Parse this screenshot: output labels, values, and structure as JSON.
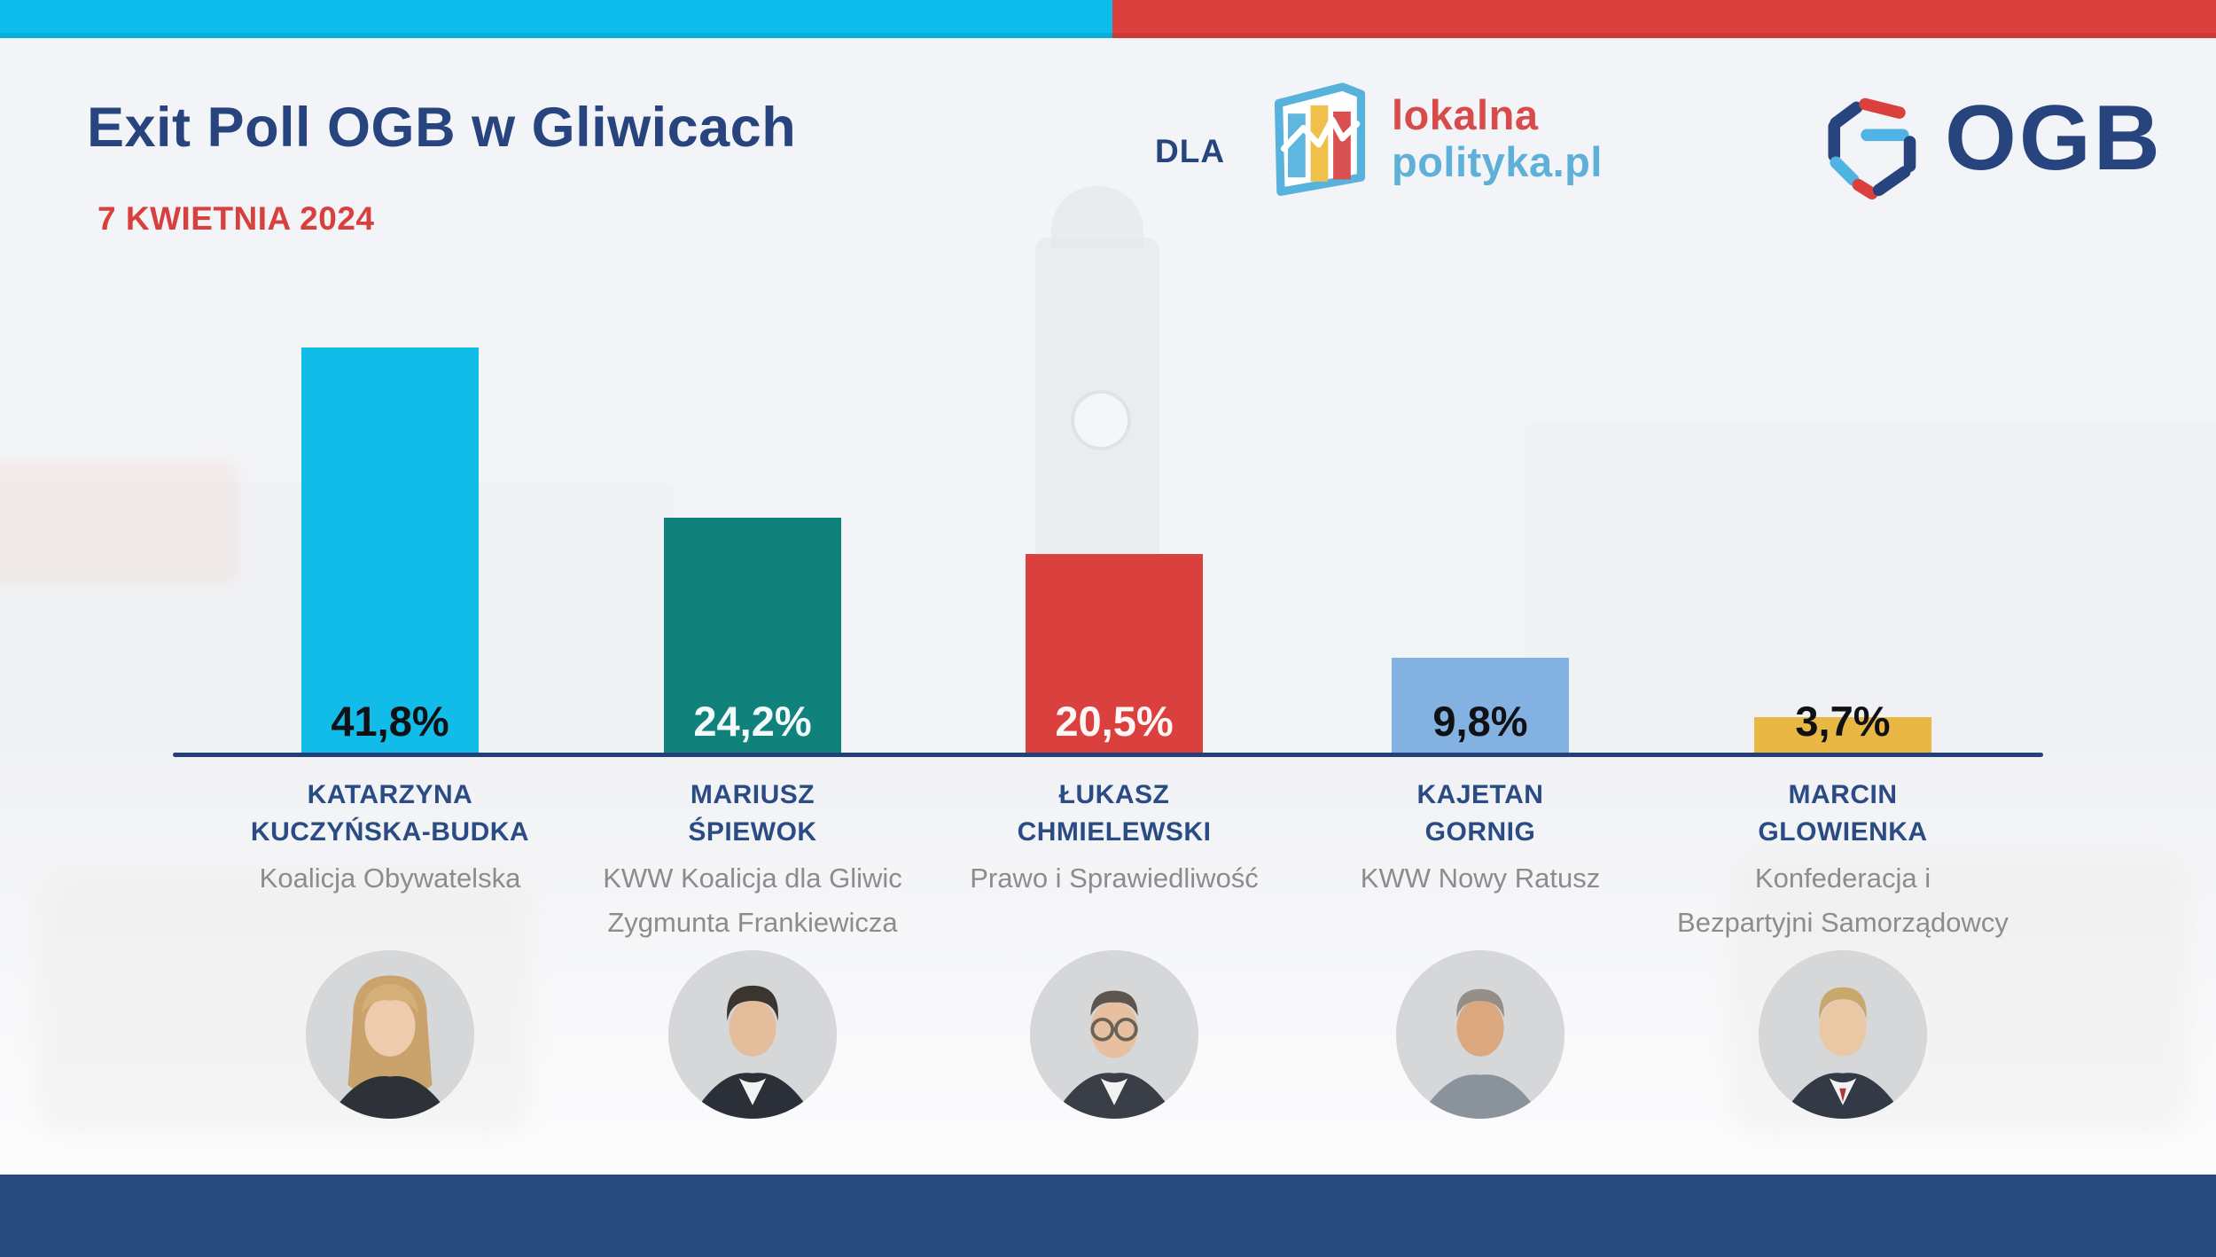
{
  "header": {
    "title": "Exit Poll OGB w Gliwicach",
    "date": "7 KWIETNIA 2024",
    "dla_label": "DLA",
    "partner_logo": {
      "line1": "lokalna",
      "line2": "polityka.pl"
    },
    "ogb_logo_text": "OGB"
  },
  "colors": {
    "top_bar_left_cyan": "#0DBDEB",
    "top_bar_right_red": "#D9403E",
    "title_navy": "#27447E",
    "date_red": "#D8403E",
    "baseline_navy": "#24407A",
    "bottom_bar_navy": "#27497B",
    "candidate_name_navy": "#2B4B84",
    "party_gray": "#8C8C8C",
    "lokalna_red": "#D84B4B",
    "lokalna_blue": "#5FB0D8"
  },
  "chart_data": {
    "type": "bar",
    "title": "Exit Poll OGB w Gliwicach",
    "subtitle": "7 KWIETNIA 2024",
    "categories": [
      "Katarzyna Kuczyńska-Budka",
      "Mariusz Śpiewok",
      "Łukasz Chmielewski",
      "Kajetan Gornig",
      "Marcin Glowienka"
    ],
    "values": [
      41.8,
      24.2,
      20.5,
      9.8,
      3.7
    ],
    "value_labels": [
      "41,8%",
      "24,2%",
      "20,5%",
      "9,8%",
      "3,7%"
    ],
    "bar_colors": [
      "#12BCE9",
      "#10827B",
      "#D9403E",
      "#82B1E2",
      "#E9B844"
    ],
    "xlabel": "",
    "ylabel": "",
    "ylim": [
      0,
      45
    ],
    "grid": false,
    "legend": false
  },
  "candidates": [
    {
      "name_line1": "KATARZYNA",
      "name_line2": "KUCZYŃSKA-BUDKA",
      "party_line1": "Koalicja Obywatelska",
      "party_line2": "",
      "value": 41.8,
      "pct_label": "41,8%",
      "bar_color": "#12BCE9",
      "pct_text_color": "#101114"
    },
    {
      "name_line1": "MARIUSZ",
      "name_line2": "ŚPIEWOK",
      "party_line1": "KWW Koalicja dla Gliwic",
      "party_line2": "Zygmunta Frankiewicza",
      "value": 24.2,
      "pct_label": "24,2%",
      "bar_color": "#10827B",
      "pct_text_color": "#F2FAFB"
    },
    {
      "name_line1": "ŁUKASZ",
      "name_line2": "CHMIELEWSKI",
      "party_line1": "Prawo i Sprawiedliwość",
      "party_line2": "",
      "value": 20.5,
      "pct_label": "20,5%",
      "bar_color": "#D9403E",
      "pct_text_color": "#FDF6F4"
    },
    {
      "name_line1": "KAJETAN",
      "name_line2": "GORNIG",
      "party_line1": "KWW Nowy Ratusz",
      "party_line2": "",
      "value": 9.8,
      "pct_label": "9,8%",
      "bar_color": "#82B1E2",
      "pct_text_color": "#101114"
    },
    {
      "name_line1": "MARCIN",
      "name_line2": "GLOWIENKA",
      "party_line1": "Konfederacja i",
      "party_line2": "Bezpartyjni Samorządowcy",
      "value": 3.7,
      "pct_label": "3,7%",
      "bar_color": "#E9B844",
      "pct_text_color": "#101114"
    }
  ]
}
